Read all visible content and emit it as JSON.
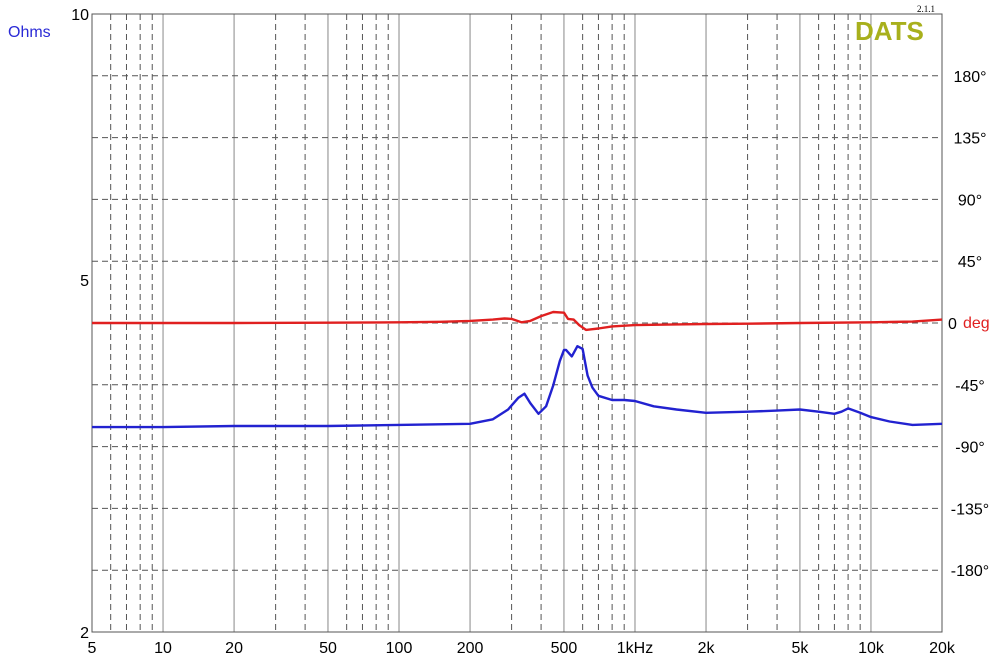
{
  "brand": {
    "name": "DATS",
    "version": "2.1.1"
  },
  "chart_data": {
    "type": "line",
    "xscale": "log",
    "xlim": [
      5,
      20000
    ],
    "ylim_left": [
      2,
      10
    ],
    "yscale_left": "log",
    "ylim_right": [
      -225,
      225
    ],
    "grid": true,
    "left_axis_label": "Ohms",
    "right_axis_unit_label": "deg",
    "x_ticks": [
      {
        "v": 5,
        "label": "5"
      },
      {
        "v": 10,
        "label": "10"
      },
      {
        "v": 20,
        "label": "20"
      },
      {
        "v": 50,
        "label": "50"
      },
      {
        "v": 100,
        "label": "100"
      },
      {
        "v": 200,
        "label": "200"
      },
      {
        "v": 500,
        "label": "500"
      },
      {
        "v": 1000,
        "label": "1kHz"
      },
      {
        "v": 2000,
        "label": "2k"
      },
      {
        "v": 5000,
        "label": "5k"
      },
      {
        "v": 10000,
        "label": "10k"
      },
      {
        "v": 20000,
        "label": "20k"
      }
    ],
    "left_ticks": [
      {
        "v": 10,
        "label": "10"
      },
      {
        "v": 5,
        "label": "5"
      },
      {
        "v": 2,
        "label": "2"
      }
    ],
    "right_ticks": [
      {
        "v": 180,
        "label": "180°"
      },
      {
        "v": 135,
        "label": "135°"
      },
      {
        "v": 90,
        "label": "90°"
      },
      {
        "v": 45,
        "label": "45°"
      },
      {
        "v": 0,
        "label": "0"
      },
      {
        "v": -45,
        "label": "-45°"
      },
      {
        "v": -90,
        "label": "-90°"
      },
      {
        "v": -135,
        "label": "-135°"
      },
      {
        "v": -180,
        "label": "-180°"
      }
    ],
    "series": [
      {
        "axis": "left",
        "color": "#2222d0",
        "x": [
          5,
          10,
          20,
          50,
          100,
          200,
          250,
          290,
          320,
          340,
          360,
          390,
          420,
          450,
          480,
          500,
          510,
          540,
          570,
          600,
          630,
          660,
          700,
          800,
          900,
          1000,
          1200,
          1500,
          2000,
          3000,
          4000,
          5000,
          6000,
          7000,
          7500,
          8000,
          9000,
          10000,
          12000,
          15000,
          20000
        ],
        "y": [
          3.41,
          3.41,
          3.42,
          3.42,
          3.43,
          3.44,
          3.48,
          3.57,
          3.68,
          3.72,
          3.63,
          3.53,
          3.6,
          3.8,
          4.05,
          4.17,
          4.17,
          4.1,
          4.21,
          4.18,
          3.9,
          3.78,
          3.7,
          3.66,
          3.66,
          3.65,
          3.6,
          3.57,
          3.54,
          3.55,
          3.56,
          3.57,
          3.55,
          3.53,
          3.55,
          3.58,
          3.54,
          3.5,
          3.46,
          3.43,
          3.44
        ]
      },
      {
        "axis": "right",
        "color": "#e02020",
        "x": [
          5,
          10,
          20,
          50,
          100,
          150,
          200,
          250,
          280,
          300,
          330,
          360,
          400,
          450,
          500,
          520,
          550,
          580,
          620,
          660,
          700,
          800,
          1000,
          1500,
          2000,
          3000,
          5000,
          10000,
          15000,
          20000
        ],
        "y": [
          0,
          0,
          0,
          0.2,
          0.5,
          0.9,
          1.5,
          2.5,
          3.3,
          3.0,
          0.5,
          1.5,
          5.0,
          8.0,
          7.5,
          3.0,
          2.5,
          -1.5,
          -5.0,
          -4.5,
          -4.0,
          -2.5,
          -1.5,
          -1.0,
          -0.7,
          -0.5,
          0,
          0.5,
          1.0,
          2.5
        ]
      }
    ]
  }
}
